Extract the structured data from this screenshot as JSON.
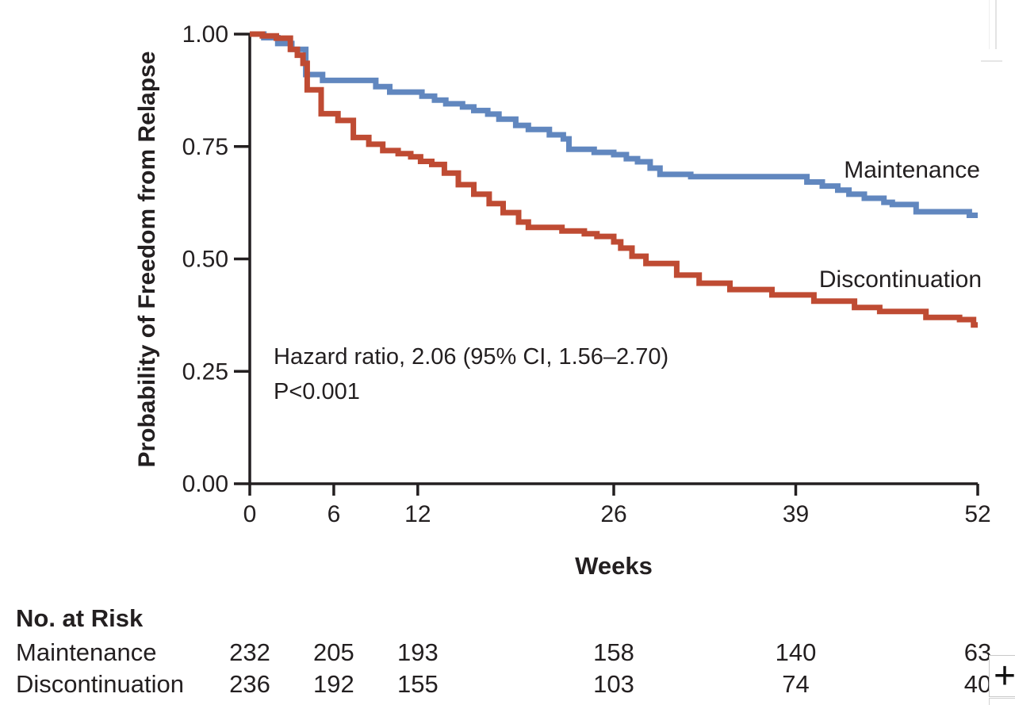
{
  "figure": {
    "colors": {
      "maintenance": "#6187bf",
      "discontinuation": "#bf4b33",
      "axis": "#231f20"
    }
  },
  "chart_data": {
    "type": "line",
    "subtype": "kaplan-meier-step",
    "title": "",
    "xlabel": "Weeks",
    "ylabel": "Probability of Freedom from Relapse",
    "xlim": [
      0,
      52
    ],
    "ylim": [
      0.0,
      1.0
    ],
    "grid": false,
    "x_tick_values": [
      0,
      6,
      12,
      26,
      39,
      52
    ],
    "x_tick_labels": [
      "0",
      "6",
      "12",
      "26",
      "39",
      "52"
    ],
    "y_tick_values": [
      1.0,
      0.75,
      0.5,
      0.25,
      0.0
    ],
    "y_tick_labels": [
      "1.00",
      "0.75",
      "0.50",
      "0.25",
      "0.00"
    ],
    "annotations": [
      "Hazard ratio, 2.06 (95% CI, 1.56–2.70)",
      "P<0.001"
    ],
    "legend_position": "labels-at-line-end",
    "series": [
      {
        "name": "Maintenance",
        "color": "#6187bf",
        "steps": [
          [
            0,
            1.0
          ],
          [
            1,
            0.992
          ],
          [
            2,
            0.979
          ],
          [
            3,
            0.966
          ],
          [
            4,
            0.91
          ],
          [
            5.2,
            0.897
          ],
          [
            9,
            0.883
          ],
          [
            10,
            0.871
          ],
          [
            12.3,
            0.862
          ],
          [
            13.2,
            0.853
          ],
          [
            14,
            0.845
          ],
          [
            15.2,
            0.838
          ],
          [
            16,
            0.83
          ],
          [
            17,
            0.822
          ],
          [
            17.8,
            0.811
          ],
          [
            19,
            0.797
          ],
          [
            19.9,
            0.788
          ],
          [
            21.4,
            0.776
          ],
          [
            22.4,
            0.767
          ],
          [
            22.8,
            0.744
          ],
          [
            24.6,
            0.737
          ],
          [
            26,
            0.732
          ],
          [
            26.9,
            0.723
          ],
          [
            27.7,
            0.716
          ],
          [
            28.6,
            0.702
          ],
          [
            29.3,
            0.688
          ],
          [
            31.5,
            0.683
          ],
          [
            39.8,
            0.671
          ],
          [
            40.9,
            0.662
          ],
          [
            42,
            0.653
          ],
          [
            42.8,
            0.644
          ],
          [
            43.9,
            0.635
          ],
          [
            45.3,
            0.626
          ],
          [
            45.9,
            0.621
          ],
          [
            47.6,
            0.605
          ],
          [
            51.4,
            0.597
          ]
        ]
      },
      {
        "name": "Discontinuation",
        "color": "#bf4b33",
        "steps": [
          [
            0,
            1.0
          ],
          [
            0.9,
            0.996
          ],
          [
            1.9,
            0.991
          ],
          [
            2.9,
            0.966
          ],
          [
            3.4,
            0.953
          ],
          [
            3.8,
            0.935
          ],
          [
            4.1,
            0.876
          ],
          [
            5.1,
            0.823
          ],
          [
            6.3,
            0.808
          ],
          [
            7.4,
            0.77
          ],
          [
            8.5,
            0.755
          ],
          [
            9.5,
            0.741
          ],
          [
            10.6,
            0.734
          ],
          [
            11.5,
            0.727
          ],
          [
            12.2,
            0.717
          ],
          [
            13,
            0.71
          ],
          [
            13.9,
            0.691
          ],
          [
            14.9,
            0.665
          ],
          [
            16,
            0.644
          ],
          [
            17.1,
            0.623
          ],
          [
            18.1,
            0.603
          ],
          [
            19.2,
            0.582
          ],
          [
            19.9,
            0.57
          ],
          [
            22.3,
            0.562
          ],
          [
            23.9,
            0.556
          ],
          [
            24.8,
            0.55
          ],
          [
            26,
            0.538
          ],
          [
            26.5,
            0.524
          ],
          [
            27.3,
            0.506
          ],
          [
            28.3,
            0.49
          ],
          [
            30.5,
            0.464
          ],
          [
            32.1,
            0.446
          ],
          [
            34.3,
            0.432
          ],
          [
            37.3,
            0.42
          ],
          [
            40.3,
            0.406
          ],
          [
            43.2,
            0.392
          ],
          [
            45,
            0.383
          ],
          [
            48.3,
            0.37
          ],
          [
            50.7,
            0.365
          ],
          [
            51.7,
            0.353
          ]
        ]
      }
    ]
  },
  "risk_table": {
    "title": "No. at Risk",
    "weeks": [
      0,
      6,
      12,
      26,
      39,
      52
    ],
    "rows": [
      {
        "label": "Maintenance",
        "values": [
          "232",
          "205",
          "193",
          "158",
          "140",
          "63"
        ]
      },
      {
        "label": "Discontinuation",
        "values": [
          "236",
          "192",
          "155",
          "103",
          "74",
          "40"
        ]
      }
    ]
  },
  "overlay": {
    "zoom_in_label": "+"
  }
}
